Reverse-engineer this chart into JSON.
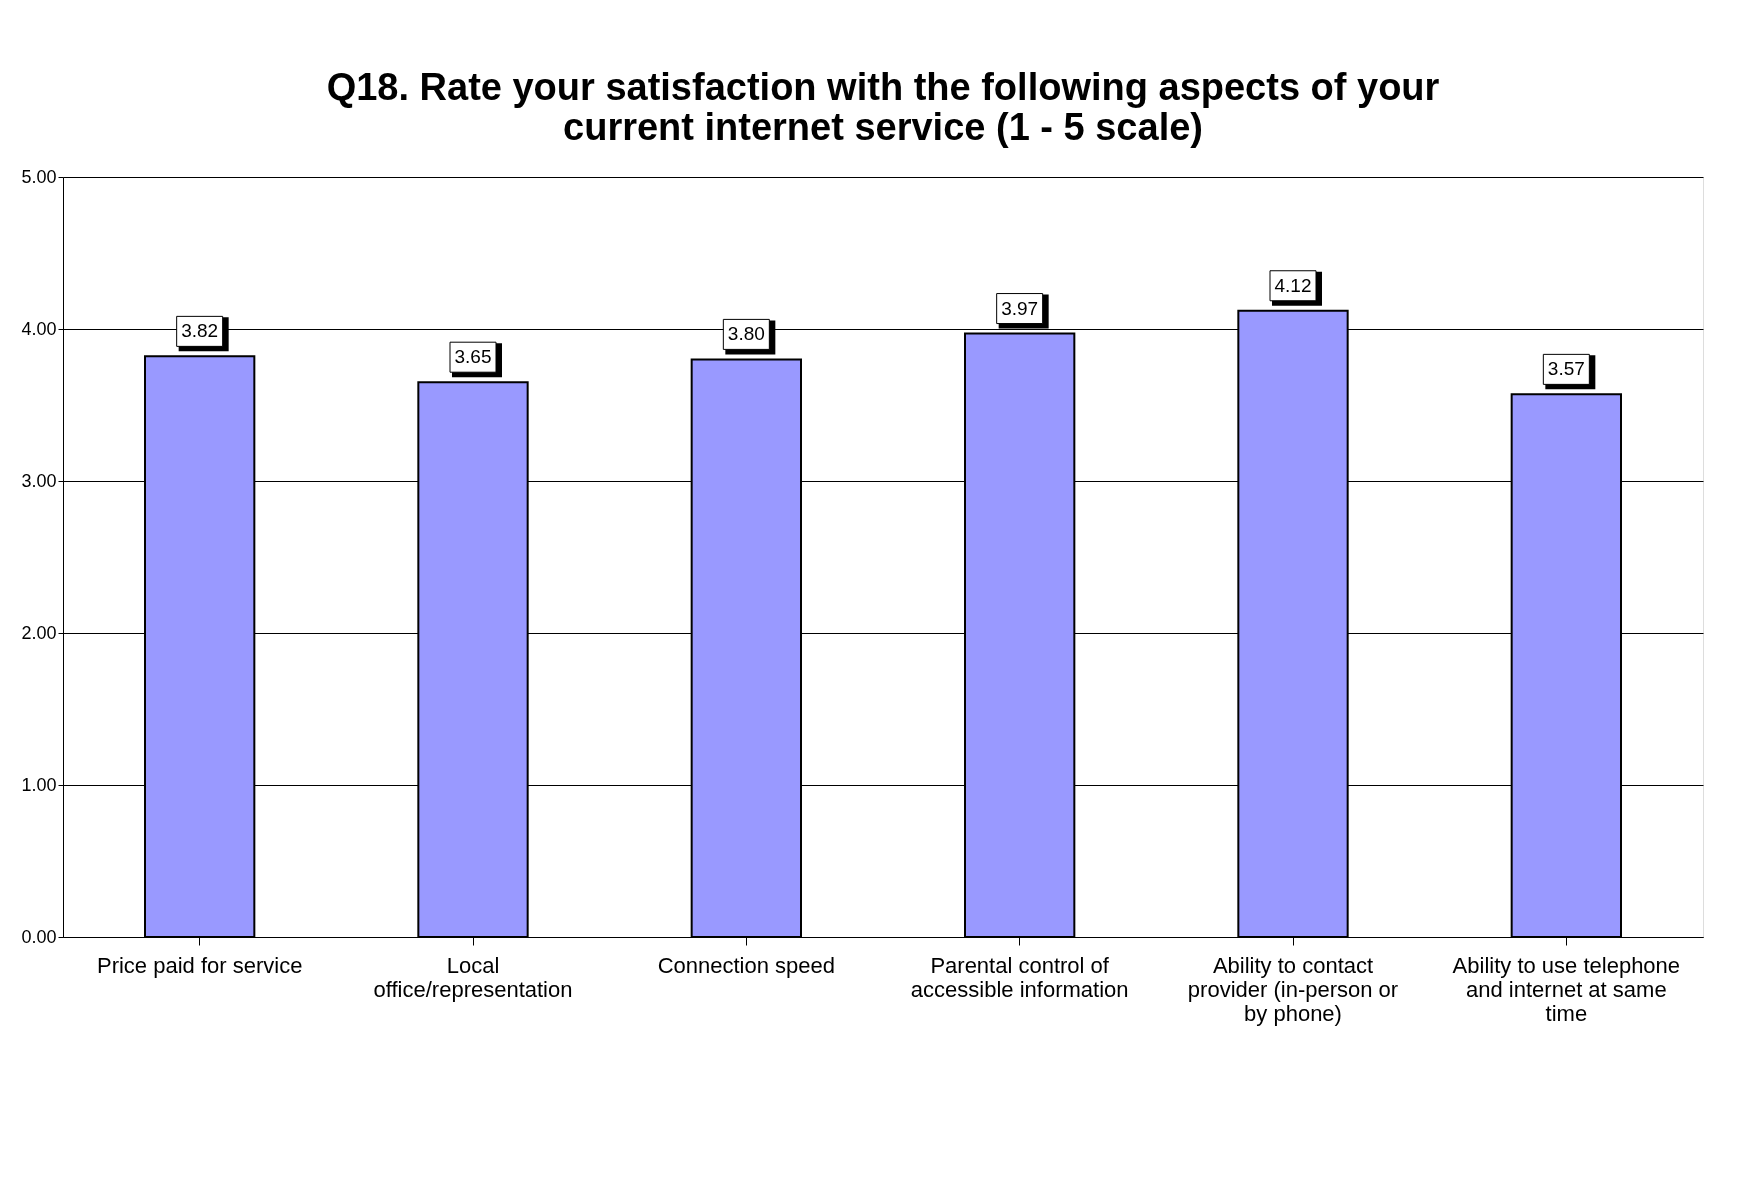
{
  "chart_data": {
    "type": "bar",
    "title": [
      "Q18.  Rate your satisfaction with the following aspects of your",
      "current internet service (1 - 5 scale)"
    ],
    "categories": [
      "Price paid for service",
      "Local office/representation",
      "Connection speed",
      "Parental control of accessible information",
      "Ability to contact provider (in-person or by phone)",
      "Ability to use telephone and internet at same time"
    ],
    "values": [
      3.82,
      3.65,
      3.8,
      3.97,
      4.12,
      3.57
    ],
    "color": "#9999ff",
    "ylim": [
      0,
      5
    ],
    "yticks": [
      {
        "value": 0,
        "label": "0.00"
      },
      {
        "value": 1,
        "label": "1.00"
      },
      {
        "value": 2,
        "label": "2.00"
      },
      {
        "value": 3,
        "label": "3.00"
      },
      {
        "value": 4,
        "label": "4.00"
      },
      {
        "value": 5,
        "label": "5.00"
      }
    ],
    "value_labels": [
      "3.82",
      "3.65",
      "3.80",
      "3.97",
      "4.12",
      "3.57"
    ],
    "grid": "y"
  }
}
